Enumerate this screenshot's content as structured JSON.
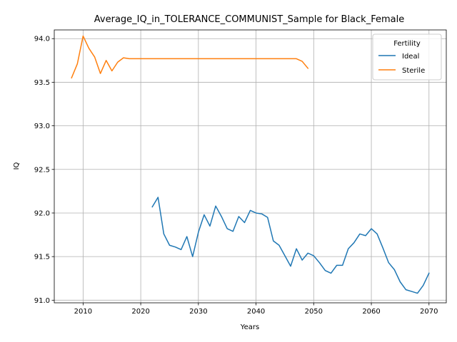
{
  "chart_data": {
    "type": "line",
    "title": "Average_IQ_in_TOLERANCE_COMMUNIST_Sample for Black_Female",
    "xlabel": "Years",
    "ylabel": "IQ",
    "xlim": [
      2005,
      2073
    ],
    "ylim": [
      90.97,
      94.1
    ],
    "xticks": [
      2010,
      2020,
      2030,
      2040,
      2050,
      2060,
      2070
    ],
    "yticks": [
      91.0,
      91.5,
      92.0,
      92.5,
      93.0,
      93.5,
      94.0
    ],
    "xtick_labels": [
      "2010",
      "2020",
      "2030",
      "2040",
      "2050",
      "2060",
      "2070"
    ],
    "ytick_labels": [
      "91.0",
      "91.5",
      "92.0",
      "92.5",
      "93.0",
      "93.5",
      "94.0"
    ],
    "grid": true,
    "legend": {
      "title": "Fertility",
      "placement": "top-right"
    },
    "series": [
      {
        "name": "Ideal",
        "color": "#1f77b4",
        "x": [
          2022,
          2023,
          2024,
          2025,
          2026,
          2027,
          2028,
          2029,
          2030,
          2031,
          2032,
          2033,
          2034,
          2035,
          2036,
          2037,
          2038,
          2039,
          2040,
          2041,
          2042,
          2043,
          2044,
          2045,
          2046,
          2047,
          2048,
          2049,
          2050,
          2051,
          2052,
          2053,
          2054,
          2055,
          2056,
          2057,
          2058,
          2059,
          2060,
          2061,
          2062,
          2063,
          2064,
          2065,
          2066,
          2067,
          2068,
          2069,
          2070
        ],
        "y": [
          92.07,
          92.18,
          91.76,
          91.63,
          91.61,
          91.58,
          91.73,
          91.5,
          91.78,
          91.98,
          91.85,
          92.08,
          91.96,
          91.82,
          91.79,
          91.96,
          91.89,
          92.03,
          92.0,
          91.99,
          91.95,
          91.68,
          91.63,
          91.51,
          91.39,
          91.59,
          91.46,
          91.54,
          91.51,
          91.43,
          91.34,
          91.31,
          91.4,
          91.4,
          91.59,
          91.66,
          91.76,
          91.74,
          91.82,
          91.76,
          91.6,
          91.43,
          91.35,
          91.21,
          91.12,
          91.1,
          91.08,
          91.17,
          91.31
        ]
      },
      {
        "name": "Sterile",
        "color": "#ff7f0e",
        "x": [
          2008,
          2009,
          2010,
          2011,
          2012,
          2013,
          2014,
          2015,
          2016,
          2017,
          2018,
          2019,
          2020,
          2021,
          2022,
          2023,
          2024,
          2025,
          2026,
          2027,
          2028,
          2029,
          2030,
          2031,
          2032,
          2033,
          2034,
          2035,
          2036,
          2037,
          2038,
          2039,
          2040,
          2041,
          2042,
          2043,
          2044,
          2045,
          2046,
          2047,
          2048,
          2049
        ],
        "y": [
          93.55,
          93.71,
          94.03,
          93.89,
          93.79,
          93.6,
          93.75,
          93.63,
          93.73,
          93.78,
          93.77,
          93.77,
          93.77,
          93.77,
          93.77,
          93.77,
          93.77,
          93.77,
          93.77,
          93.77,
          93.77,
          93.77,
          93.77,
          93.77,
          93.77,
          93.77,
          93.77,
          93.77,
          93.77,
          93.77,
          93.77,
          93.77,
          93.77,
          93.77,
          93.77,
          93.77,
          93.77,
          93.77,
          93.77,
          93.77,
          93.74,
          93.66
        ]
      }
    ]
  }
}
